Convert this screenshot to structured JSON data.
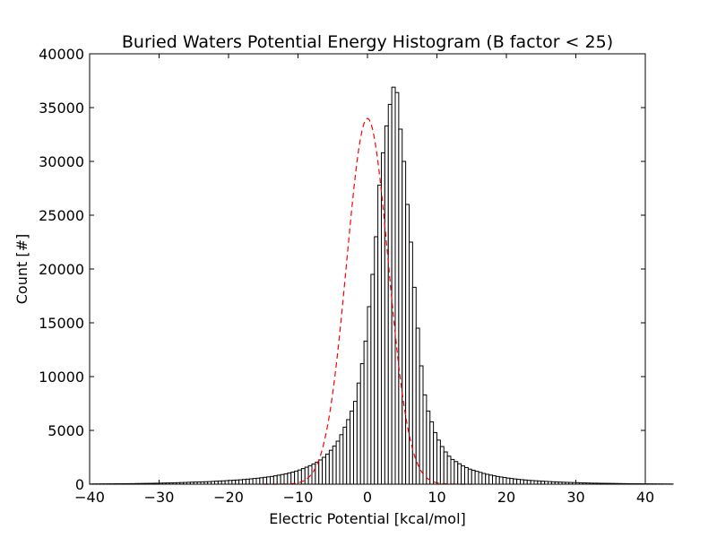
{
  "chart_data": {
    "type": "bar",
    "title": "Buried Waters Potential Energy Histogram (B factor < 25)",
    "xlabel": "Electric Potential [kcal/mol]",
    "ylabel": "Count [#]",
    "xlim": [
      -40,
      40
    ],
    "ylim": [
      0,
      40000
    ],
    "x_ticks": [
      "−40",
      "−30",
      "−20",
      "−10",
      "0",
      "10",
      "20",
      "30",
      "40"
    ],
    "y_ticks": [
      "0",
      "5000",
      "10000",
      "15000",
      "20000",
      "25000",
      "30000",
      "35000",
      "40000"
    ],
    "x_tick_values": [
      -40,
      -30,
      -20,
      -10,
      0,
      10,
      20,
      30,
      40
    ],
    "y_tick_values": [
      0,
      5000,
      10000,
      15000,
      20000,
      25000,
      30000,
      35000,
      40000
    ],
    "bin_width": 0.5,
    "bins_start": -40,
    "grid": false,
    "counts": [
      20,
      25,
      25,
      30,
      30,
      35,
      35,
      40,
      40,
      45,
      45,
      50,
      50,
      60,
      65,
      70,
      75,
      80,
      85,
      90,
      100,
      110,
      115,
      120,
      130,
      140,
      150,
      160,
      175,
      190,
      200,
      210,
      220,
      230,
      240,
      260,
      280,
      300,
      310,
      330,
      350,
      370,
      390,
      410,
      440,
      470,
      500,
      530,
      560,
      600,
      640,
      680,
      720,
      780,
      840,
      900,
      960,
      1040,
      1120,
      1220,
      1320,
      1450,
      1580,
      1720,
      1880,
      2050,
      2250,
      2500,
      2800,
      3150,
      3550,
      4000,
      4600,
      5300,
      6000,
      6800,
      7700,
      9400,
      11200,
      13300,
      16500,
      19500,
      23000,
      27800,
      30800,
      33300,
      35300,
      36900,
      36400,
      33000,
      30000,
      26000,
      22500,
      18300,
      14500,
      11000,
      8300,
      6800,
      5800,
      4800,
      4100,
      3500,
      3000,
      2600,
      2300,
      2100,
      1900,
      1700,
      1550,
      1400,
      1300,
      1200,
      1100,
      1000,
      920,
      850,
      780,
      720,
      670,
      620,
      570,
      530,
      490,
      450,
      420,
      390,
      360,
      340,
      320,
      300,
      280,
      260,
      240,
      225,
      210,
      195,
      180,
      170,
      160,
      150,
      140,
      130,
      120,
      110,
      100,
      95,
      90,
      85,
      80,
      75,
      70,
      65,
      60,
      55,
      50,
      45,
      45,
      40,
      40,
      35,
      35,
      30,
      30,
      25,
      25,
      20,
      20,
      20
    ],
    "fit": {
      "type": "gaussian",
      "color": "#ff0000",
      "style": "dashed",
      "amplitude": 34000,
      "mean": 0,
      "sigma": 3
    }
  }
}
